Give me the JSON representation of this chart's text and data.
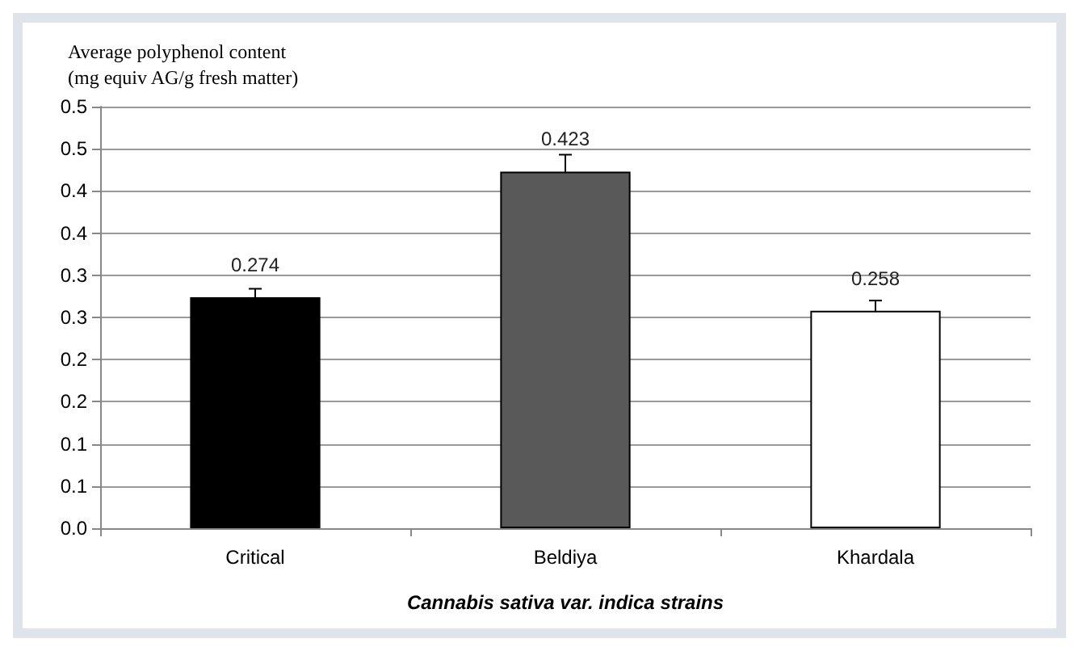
{
  "chart_data": {
    "type": "bar",
    "ylabel": "Average polyphenol content\n(mg equiv AG/g fresh matter)",
    "xlabel": "Cannabis sativa var. indica strains",
    "categories": [
      "Critical",
      "Beldiya",
      "Khardala"
    ],
    "values": [
      0.274,
      0.423,
      0.258
    ],
    "colors": [
      "#000000",
      "#595959",
      "#ffffff"
    ],
    "errors": [
      0.01,
      0.02,
      0.012
    ],
    "data_labels": true,
    "ylim": [
      0,
      0.5
    ],
    "yticks": [
      {
        "value": 0,
        "label": "0.0"
      },
      {
        "value": 0.05,
        "label": "0.1"
      },
      {
        "value": 0.1,
        "label": "0.1"
      },
      {
        "value": 0.15,
        "label": "0.2"
      },
      {
        "value": 0.2,
        "label": "0.2"
      },
      {
        "value": 0.25,
        "label": "0.3"
      },
      {
        "value": 0.3,
        "label": "0.3"
      },
      {
        "value": 0.35,
        "label": "0.4"
      },
      {
        "value": 0.4,
        "label": "0.4"
      },
      {
        "value": 0.45,
        "label": "0.5"
      },
      {
        "value": 0.5,
        "label": "0.5"
      }
    ],
    "grid": "y"
  }
}
